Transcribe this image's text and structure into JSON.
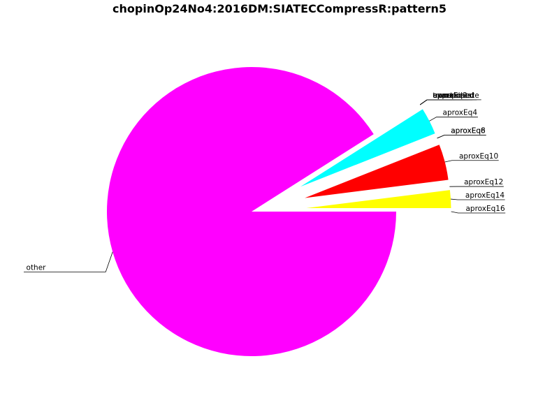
{
  "chart_data": {
    "type": "pie",
    "title": "chopinOp24No4:2016DM:SIATECCompressR:pattern5",
    "slices": [
      {
        "label": "other",
        "value": 91.0,
        "color": "#ff00ff",
        "explode": false
      },
      {
        "label": "unmatched",
        "value": 0.0,
        "color": "#00ffff",
        "explode": true
      },
      {
        "label": "exact",
        "value": 0.0,
        "color": "#00ffff",
        "explode": true
      },
      {
        "label": "transposed",
        "value": 0.0,
        "color": "#00ffff",
        "explode": true
      },
      {
        "label": "approximate",
        "value": 0.0,
        "color": "#00ffff",
        "explode": true
      },
      {
        "label": "aproxEq2",
        "value": 0.0,
        "color": "#00ffff",
        "explode": true
      },
      {
        "label": "aproxEq4",
        "value": 3.0,
        "color": "#00ffff",
        "explode": true
      },
      {
        "label": "aproxEq6",
        "value": 0.0,
        "color": "#ff0000",
        "explode": true
      },
      {
        "label": "aproxEq8",
        "value": 0.0,
        "color": "#ff0000",
        "explode": true
      },
      {
        "label": "aproxEq10",
        "value": 4.0,
        "color": "#ff0000",
        "explode": true
      },
      {
        "label": "aproxEq12",
        "value": 0.0,
        "color": "#ffff00",
        "explode": true
      },
      {
        "label": "aproxEq14",
        "value": 2.0,
        "color": "#ffff00",
        "explode": true
      },
      {
        "label": "aproxEq16",
        "value": 0.0,
        "color": "#ffff00",
        "explode": true
      }
    ]
  }
}
